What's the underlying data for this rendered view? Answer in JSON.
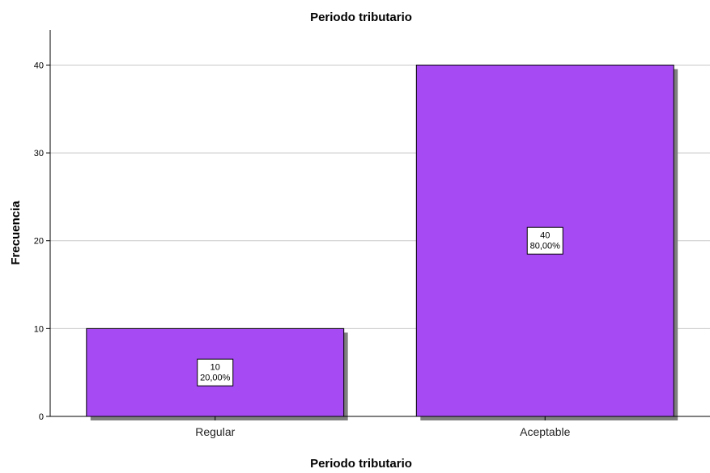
{
  "chart_data": {
    "type": "bar",
    "title": "Periodo tributario",
    "xlabel": "Periodo tributario",
    "ylabel": "Frecuencia",
    "categories": [
      "Regular",
      "Aceptable"
    ],
    "values": [
      10,
      40
    ],
    "percent_labels": [
      "20,00%",
      "80,00%"
    ],
    "ylim": [
      0,
      44
    ],
    "yticks": [
      0,
      10,
      20,
      30,
      40
    ],
    "grid": true,
    "bar_color": "#a64bf4",
    "shadow_color": "#7f7f7f",
    "grid_color": "#c8c8c8"
  }
}
